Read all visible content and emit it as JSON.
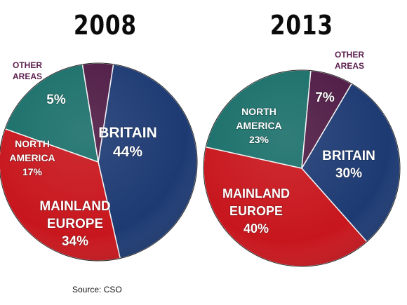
{
  "source": "Source: CSO",
  "colors": {
    "britain": "#1d3a73",
    "mainland_europe": "#c8161d",
    "north_america": "#1a6f6a",
    "other_areas": "#4f1b45",
    "other_areas_label": "#5a1e4e"
  },
  "chart_data": [
    {
      "type": "pie",
      "title": "2008",
      "categories": [
        "BRITAIN",
        "MAINLAND EUROPE",
        "NORTH AMERICA",
        "OTHER AREAS"
      ],
      "values": [
        44,
        34,
        17,
        5
      ],
      "labels": [
        "BRITAIN 44%",
        "MAINLAND EUROPE 34%",
        "NORTH AMERICA 17%",
        "5%"
      ],
      "external_label": "OTHER AREAS"
    },
    {
      "type": "pie",
      "title": "2013",
      "categories": [
        "BRITAIN",
        "MAINLAND EUROPE",
        "NORTH AMERICA",
        "OTHER AREAS"
      ],
      "values": [
        30,
        40,
        23,
        7
      ],
      "labels": [
        "BRITAIN 30%",
        "MAINLAND EUROPE 40%",
        "NORTH AMERICA 23%",
        "7%"
      ],
      "external_label": "OTHER AREAS"
    }
  ]
}
